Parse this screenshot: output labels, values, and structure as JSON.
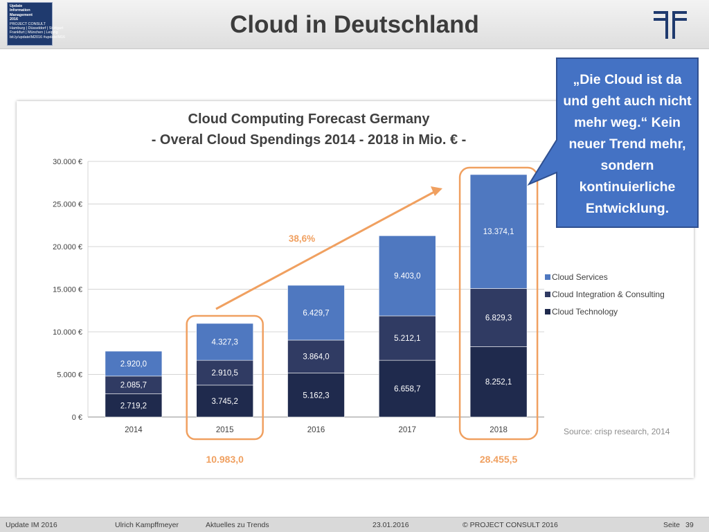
{
  "header": {
    "title": "Cloud in Deutschland",
    "logo": {
      "title_lines": [
        "Update",
        "Information",
        "Management",
        "2016"
      ],
      "brand": "PROJECT CONSULT",
      "cities_lines": [
        "Hamburg | Düsseldorf | Stuttgart",
        "Frankfurt | München | Leipzig"
      ],
      "footer": "bit.ly/updateIM2016 #updateIM16"
    }
  },
  "callout": {
    "text": "„Die Cloud ist da und geht auch nicht mehr weg.“ Kein neuer Trend mehr, sondern kontinuierliche Entwicklung.",
    "color": "#4472c4"
  },
  "chart_data": {
    "type": "bar",
    "stacked": true,
    "title": "Cloud Computing Forecast Germany",
    "subtitle": "- Overal Cloud Spendings 2014 - 2018 in Mio. € -",
    "categories": [
      "2014",
      "2015",
      "2016",
      "2017",
      "2018"
    ],
    "series": [
      {
        "name": "Cloud Technology",
        "color": "#1f2a4d",
        "values": [
          2719.2,
          3745.2,
          5162.3,
          6658.7,
          8252.1
        ],
        "labels": [
          "2.719,2",
          "3.745,2",
          "5.162,3",
          "6.658,7",
          "8.252,1"
        ]
      },
      {
        "name": "Cloud Integration & Consulting",
        "color": "#303b63",
        "values": [
          2085.7,
          2910.5,
          3864.0,
          5212.1,
          6829.3
        ],
        "labels": [
          "2.085,7",
          "2.910,5",
          "3.864,0",
          "5.212,1",
          "6.829,3"
        ]
      },
      {
        "name": "Cloud Services",
        "color": "#4f78c0",
        "values": [
          2920.0,
          4327.3,
          6429.7,
          9403.0,
          13374.1
        ],
        "labels": [
          "2.920,0",
          "4.327,3",
          "6.429,7",
          "9.403,0",
          "13.374,1"
        ]
      }
    ],
    "y_ticks": [
      "0 €",
      "5.000 €",
      "10.000 €",
      "15.000 €",
      "20.000 €",
      "25.000 €",
      "30.000 €"
    ],
    "ylim": [
      0,
      30000
    ],
    "grid": true,
    "legend_position": "right",
    "source": "Source: crisp research, 2014",
    "annotations": {
      "growth_label": "38,6%",
      "total_2015": "10.983,0",
      "total_2018": "28.455,5",
      "highlight_color": "#f0a060"
    }
  },
  "footer": {
    "event": "Update IM 2016",
    "author": "Ulrich Kampffmeyer",
    "topic": "Aktuelles zu Trends",
    "date": "23.01.2016",
    "copyright": "© PROJECT CONSULT 2016",
    "page_label": "Seite",
    "page_number": "39"
  }
}
